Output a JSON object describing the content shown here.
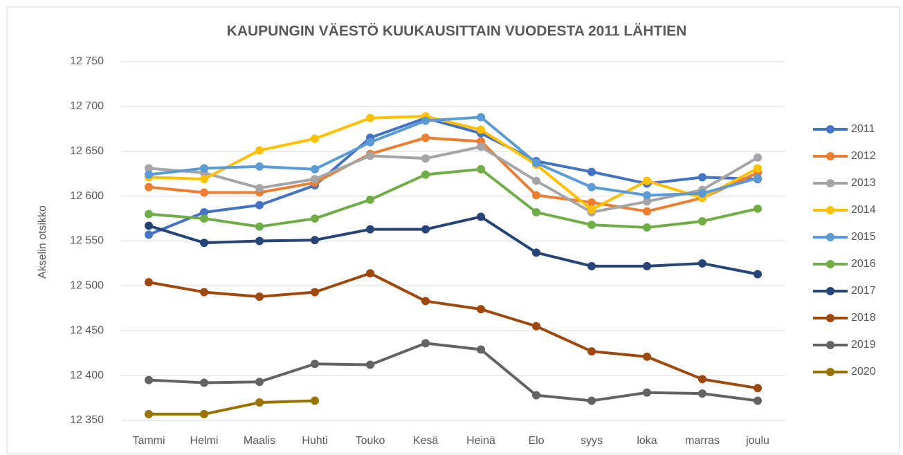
{
  "chart_data": {
    "type": "line",
    "title": "KAUPUNGIN VÄESTÖ KUUKAUSITTAIN VUODESTA 2011 LÄHTIEN",
    "y_label": "Akselin otsikko",
    "categories": [
      "Tammi",
      "Helmi",
      "Maalis",
      "Huhti",
      "Touko",
      "Kesä",
      "Heinä",
      "Elo",
      "syys",
      "loka",
      "marras",
      "joulu"
    ],
    "ylim": [
      12350,
      12750
    ],
    "yticks": [
      {
        "value": 12350,
        "label": "12 350"
      },
      {
        "value": 12400,
        "label": "12 400"
      },
      {
        "value": 12450,
        "label": "12 450"
      },
      {
        "value": 12500,
        "label": "12 500"
      },
      {
        "value": 12550,
        "label": "12 550"
      },
      {
        "value": 12600,
        "label": "12 600"
      },
      {
        "value": 12650,
        "label": "12 650"
      },
      {
        "value": 12700,
        "label": "12 700"
      },
      {
        "value": 12750,
        "label": "12 750"
      }
    ],
    "grid": true,
    "legend": "right",
    "series": [
      {
        "name": "2011",
        "color": "#4472c4",
        "values": [
          12557,
          12582,
          12590,
          12612,
          12665,
          12687,
          12670,
          12639,
          12627,
          12614,
          12621,
          12619
        ]
      },
      {
        "name": "2012",
        "color": "#ed7d31",
        "values": [
          12610,
          12604,
          12604,
          12615,
          12647,
          12665,
          12661,
          12601,
          12593,
          12583,
          12598,
          12626
        ]
      },
      {
        "name": "2013",
        "color": "#a5a5a5",
        "values": [
          12631,
          12626,
          12609,
          12619,
          12645,
          12642,
          12655,
          12617,
          12582,
          12594,
          12607,
          12643
        ]
      },
      {
        "name": "2014",
        "color": "#ffc000",
        "values": [
          12621,
          12619,
          12651,
          12664,
          12687,
          12689,
          12674,
          12635,
          12585,
          12617,
          12598,
          12631
        ]
      },
      {
        "name": "2015",
        "color": "#5b9bd5",
        "values": [
          12624,
          12631,
          12633,
          12630,
          12660,
          12684,
          12688,
          12637,
          12610,
          12601,
          12603,
          12620
        ]
      },
      {
        "name": "2016",
        "color": "#70ad47",
        "values": [
          12580,
          12575,
          12566,
          12575,
          12596,
          12624,
          12630,
          12582,
          12568,
          12565,
          12572,
          12586
        ]
      },
      {
        "name": "2017",
        "color": "#264478",
        "values": [
          12567,
          12548,
          12550,
          12551,
          12563,
          12563,
          12577,
          12537,
          12522,
          12522,
          12525,
          12513
        ]
      },
      {
        "name": "2018",
        "color": "#9e480e",
        "values": [
          12504,
          12493,
          12488,
          12493,
          12514,
          12483,
          12474,
          12455,
          12427,
          12421,
          12396,
          12386
        ]
      },
      {
        "name": "2019",
        "color": "#636363",
        "values": [
          12395,
          12392,
          12393,
          12413,
          12412,
          12436,
          12429,
          12378,
          12372,
          12381,
          12380,
          12372
        ]
      },
      {
        "name": "2020",
        "color": "#997300",
        "values": [
          12357,
          12357,
          12370,
          12372,
          null,
          null,
          null,
          null,
          null,
          null,
          null,
          null
        ]
      }
    ]
  }
}
